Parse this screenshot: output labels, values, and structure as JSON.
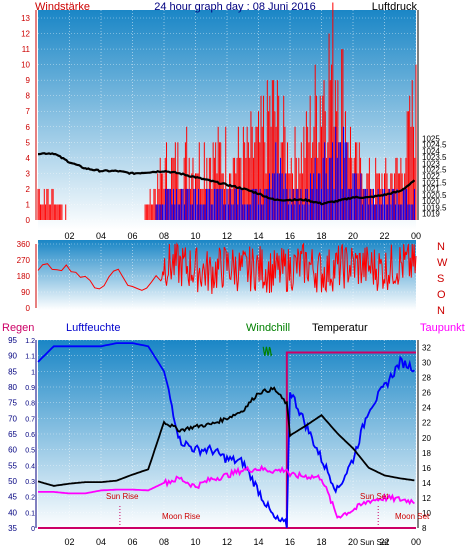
{
  "header": {
    "title": "24 hour graph day : 08 Juni 2016",
    "left_label": "Windstärke",
    "right_label": "Luftdruck"
  },
  "colors": {
    "sky_top": "#1a86c6",
    "sky_bottom": "#ffffff",
    "wind": "#ff0000",
    "gust": "#0000ff",
    "pressure": "#000000",
    "direction": "#ff0000",
    "temperature": "#000000",
    "humidity": "#0000ff",
    "dewpoint": "#ff00ff",
    "windchill": "#008000",
    "rain": "#cc0066",
    "axis_left": "#cc0000",
    "axis_right": "#000080"
  },
  "legend": {
    "regen": "Regen",
    "luftfeuchte": "Luftfeuchte",
    "windchill": "Windchill",
    "temperatur": "Temperatur",
    "taupunkt": "Taupunkt"
  },
  "annotations": {
    "sun_rise": "Sun Rise",
    "moon_rise": "Moon Rise",
    "sun_set": "Sun Set",
    "moon_set": "Moon Set",
    "sun_set_axis": "Sun Set"
  },
  "compass": [
    "N",
    "W",
    "S",
    "O",
    "N"
  ],
  "x_ticks": [
    "02",
    "04",
    "06",
    "08",
    "10",
    "12",
    "14",
    "16",
    "18",
    "20",
    "22",
    "00"
  ],
  "chart_data": [
    {
      "type": "bar",
      "name": "wind_pressure",
      "ylim_left": [
        0,
        13
      ],
      "yticks_left": [
        "0",
        "1",
        "2",
        "3",
        "4",
        "5",
        "6",
        "7",
        "8",
        "9",
        "10",
        "11",
        "12",
        "13"
      ],
      "ylim_right": [
        1018.5,
        1035.2
      ],
      "yticks_right": [
        "1019",
        "1019.5",
        "1020",
        "1020.5",
        "1021",
        "1021.5",
        "1022",
        "1022.5",
        "1023",
        "1023.5",
        "1024",
        "1024.5",
        "1025"
      ],
      "pressure_hours": [
        0,
        1,
        2,
        3,
        4,
        5,
        6,
        7,
        8,
        9,
        10,
        11,
        12,
        13,
        14,
        15,
        16,
        17,
        18,
        19,
        20,
        21,
        22,
        23,
        24
      ],
      "pressure_values": [
        1023.8,
        1023.8,
        1023.1,
        1022.6,
        1022.4,
        1022.4,
        1022.2,
        1022.3,
        1022.4,
        1022.2,
        1021.9,
        1021.6,
        1021.3,
        1021.0,
        1020.6,
        1020.1,
        1020.1,
        1020.1,
        1019.8,
        1020.0,
        1020.3,
        1020.3,
        1020.5,
        1020.8,
        1021.7
      ],
      "wind_hours": [
        0,
        1,
        2,
        3,
        4,
        5,
        6,
        7,
        8,
        9,
        10,
        11,
        12,
        13,
        14,
        15,
        16,
        17,
        18,
        19,
        20,
        21,
        22,
        23,
        24
      ],
      "wind_values": [
        2,
        2,
        0,
        0,
        0,
        0,
        0,
        1,
        4,
        5,
        5,
        5,
        5,
        5,
        6,
        9,
        5,
        6,
        11,
        13,
        5,
        3,
        3,
        4,
        9
      ],
      "gust_values": [
        0,
        0,
        0,
        0,
        0,
        0,
        0,
        0,
        2,
        2,
        2,
        2,
        2,
        2,
        2,
        5,
        2,
        2,
        5,
        6,
        3,
        2,
        2,
        2,
        2
      ]
    },
    {
      "type": "scatter",
      "name": "wind_direction",
      "ylim": [
        0,
        360
      ],
      "yticks": [
        "0",
        "90",
        "180",
        "270",
        "360"
      ],
      "hours": [
        0,
        1,
        2,
        3,
        4,
        5,
        6,
        7,
        8,
        9,
        10,
        11,
        12,
        13,
        14,
        15,
        16,
        17,
        18,
        19,
        20,
        21,
        22,
        23,
        24
      ],
      "values": [
        230,
        230,
        230,
        160,
        110,
        230,
        110,
        110,
        250,
        240,
        220,
        200,
        240,
        210,
        230,
        200,
        220,
        250,
        200,
        230,
        240,
        230,
        220,
        250,
        240
      ]
    },
    {
      "type": "line",
      "name": "climate",
      "ylim_left": [
        35,
        95
      ],
      "yticks_left": [
        "35",
        "40",
        "45",
        "50",
        "55",
        "60",
        "65",
        "70",
        "75",
        "80",
        "85",
        "90",
        "95"
      ],
      "ylim_rain": [
        0,
        1.2
      ],
      "yticks_rain": [
        "0",
        "0.1",
        "0.2",
        "0.3",
        "0.4",
        "0.5",
        "0.6",
        "0.7",
        "0.8",
        "0.9",
        "1",
        "1.1",
        "1.2"
      ],
      "ylim_right": [
        8,
        33
      ],
      "yticks_right": [
        "8",
        "10",
        "12",
        "14",
        "16",
        "18",
        "20",
        "22",
        "24",
        "26",
        "28",
        "30",
        "32"
      ],
      "hours": [
        0,
        1,
        2,
        3,
        4,
        5,
        6,
        7,
        8,
        9,
        10,
        11,
        12,
        13,
        14,
        15,
        15.8,
        16,
        17,
        18,
        19,
        20,
        21,
        22,
        23,
        24
      ],
      "humidity": [
        88,
        93,
        93,
        93,
        93,
        94,
        94,
        93,
        85,
        63,
        60,
        60,
        57,
        56,
        47,
        38,
        36,
        79,
        68,
        57,
        47,
        57,
        73,
        80,
        88,
        86
      ],
      "temperature": [
        14.2,
        13.6,
        13.9,
        14.1,
        14.1,
        14.3,
        15.1,
        15.8,
        22.1,
        21.0,
        21.5,
        21.8,
        22.6,
        23.6,
        26.0,
        26.5,
        24.5,
        20.3,
        21.6,
        23.0,
        20.6,
        18.6,
        16.0,
        15.0,
        14.6,
        14.3
      ],
      "dewpoint": [
        12.8,
        12.8,
        12.6,
        12.6,
        13.0,
        13.1,
        13.1,
        13.0,
        14.0,
        14.6,
        13.5,
        14.5,
        15.0,
        15.7,
        15.9,
        15.6,
        15.8,
        15.0,
        14.9,
        14.7,
        9.5,
        10.4,
        11.6,
        12.0,
        11.8,
        11.5
      ],
      "rain_total": [
        0,
        0,
        0,
        0,
        0,
        0,
        0,
        0,
        0,
        0,
        0,
        0,
        0,
        0,
        0,
        0,
        1.12,
        1.12,
        1.12,
        1.12,
        1.12,
        1.12,
        1.12,
        1.12,
        1.12,
        1.12
      ]
    }
  ]
}
